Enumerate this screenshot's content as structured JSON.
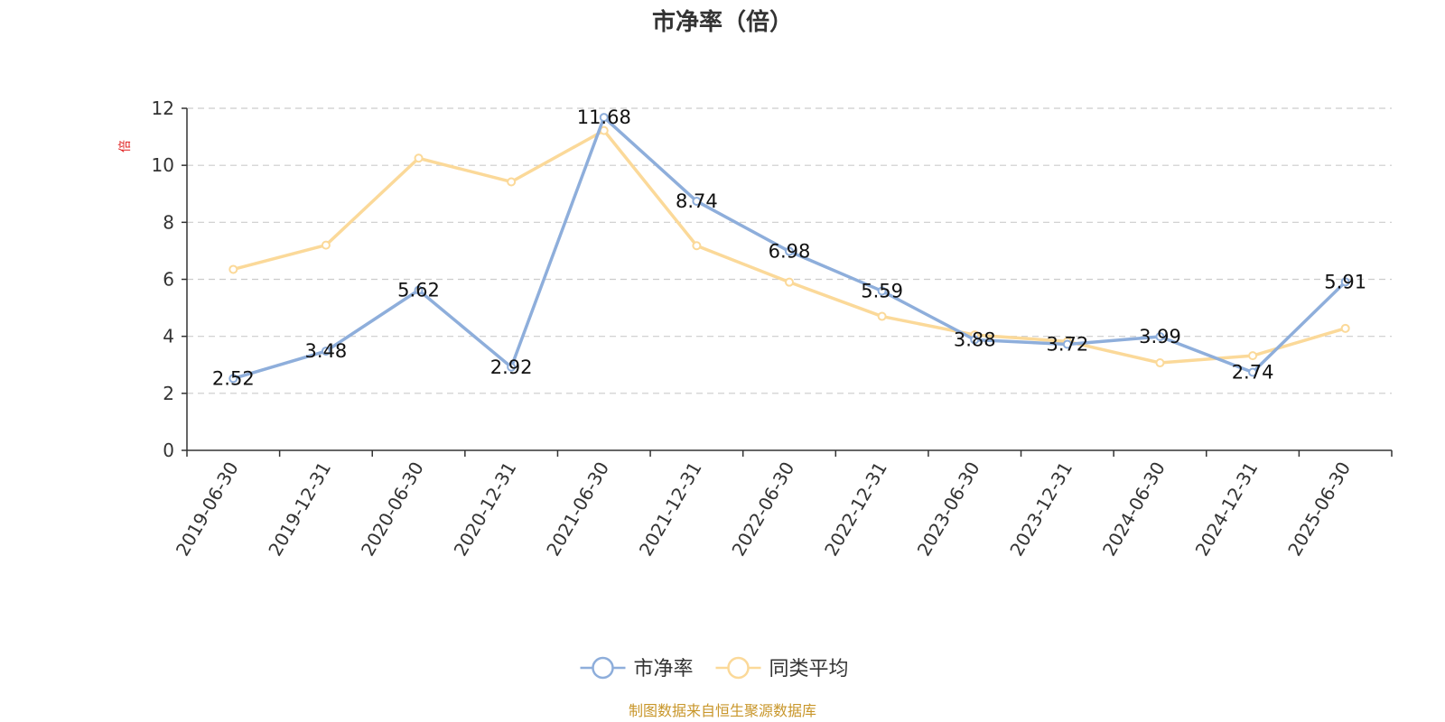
{
  "chart_data": {
    "type": "line",
    "title": "市净率（倍）",
    "ylabel": "倍",
    "xlabel": "",
    "ylim": [
      0,
      12
    ],
    "yticks": [
      0,
      2,
      4,
      6,
      8,
      10,
      12
    ],
    "grid": true,
    "legend_position": "bottom",
    "categories": [
      "2019-06-30",
      "2019-12-31",
      "2020-06-30",
      "2020-12-31",
      "2021-06-30",
      "2021-12-31",
      "2022-06-30",
      "2022-12-31",
      "2023-06-30",
      "2023-12-31",
      "2024-06-30",
      "2024-12-31",
      "2025-06-30"
    ],
    "series": [
      {
        "name": "市净率",
        "color": "#8eaedb",
        "show_labels": true,
        "values": [
          2.52,
          3.48,
          5.62,
          2.92,
          11.68,
          8.74,
          6.98,
          5.59,
          3.88,
          3.72,
          3.99,
          2.74,
          5.91
        ]
      },
      {
        "name": "同类平均",
        "color": "#fbd999",
        "show_labels": false,
        "values": [
          6.35,
          7.2,
          10.25,
          9.42,
          11.22,
          7.18,
          5.9,
          4.7,
          4.05,
          3.82,
          3.07,
          3.32,
          4.28
        ]
      }
    ],
    "source": "制图数据来自恒生聚源数据库"
  }
}
